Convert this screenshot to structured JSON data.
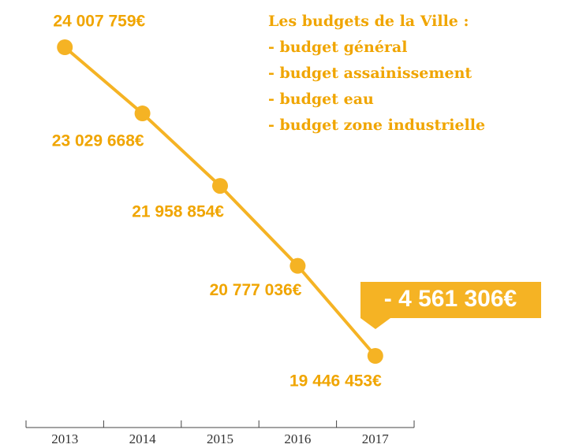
{
  "chart_data": {
    "type": "line",
    "categories": [
      "2013",
      "2014",
      "2015",
      "2016",
      "2017"
    ],
    "values": [
      24007759,
      23029668,
      21958854,
      20777036,
      19446453
    ],
    "value_labels": [
      "24 007 759€",
      "23 029 668€",
      "21 958 854€",
      "20 777 036€",
      "19 446 453€"
    ],
    "color": "#f5b324",
    "annotation": "- 4 561 306€",
    "note_title": "Les budgets de la Ville :",
    "note_items": [
      "- budget général",
      "- budget assainissement",
      "- budget eau",
      "- budget zone industrielle"
    ]
  }
}
